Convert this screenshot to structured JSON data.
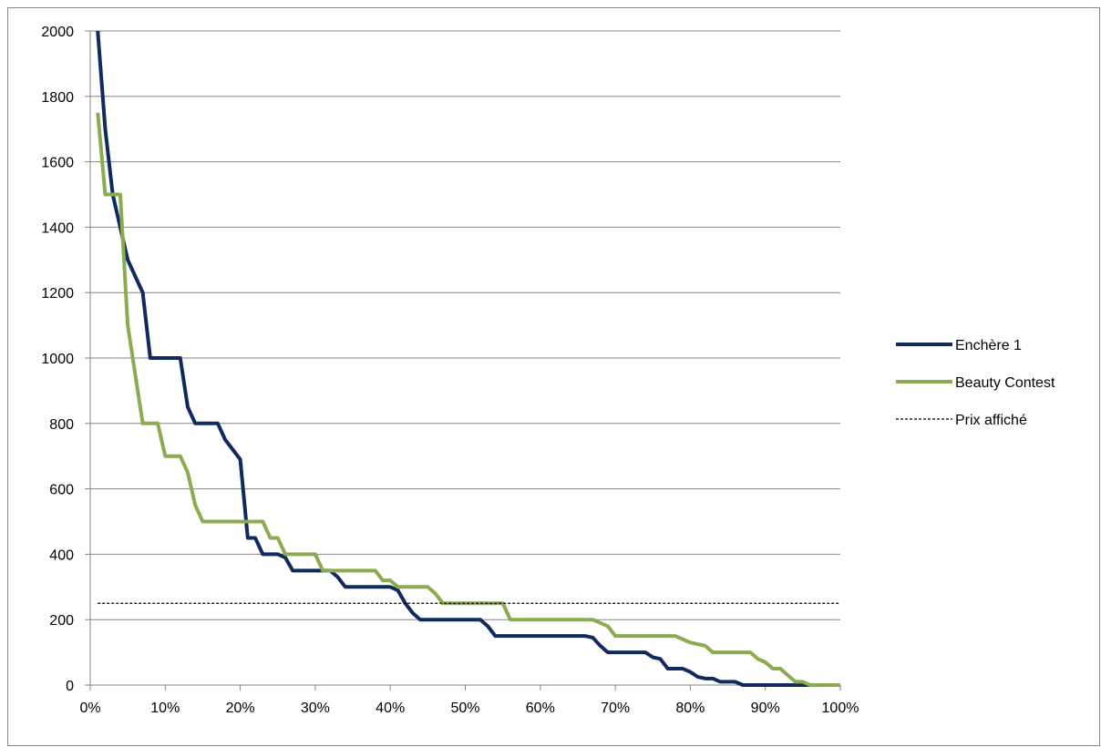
{
  "chart_data": {
    "type": "line",
    "title": "",
    "xlabel": "",
    "ylabel": "",
    "xlim": [
      0,
      100
    ],
    "ylim": [
      0,
      2000
    ],
    "x_ticks": [
      "0%",
      "10%",
      "20%",
      "30%",
      "40%",
      "50%",
      "60%",
      "70%",
      "80%",
      "90%",
      "100%"
    ],
    "y_ticks": [
      "0",
      "200",
      "400",
      "600",
      "800",
      "1000",
      "1200",
      "1400",
      "1600",
      "1800",
      "2000"
    ],
    "grid": "horizontal",
    "legend_position": "right",
    "series": [
      {
        "name": "Enchère 1",
        "color": "#0f2a5f",
        "style": "solid",
        "x": [
          1,
          2,
          3,
          4,
          5,
          6,
          7,
          8,
          9,
          10,
          11,
          12,
          13,
          14,
          15,
          16,
          17,
          18,
          19,
          20,
          21,
          22,
          23,
          24,
          25,
          26,
          27,
          28,
          29,
          30,
          31,
          32,
          33,
          34,
          35,
          36,
          37,
          38,
          39,
          40,
          41,
          42,
          43,
          44,
          45,
          46,
          47,
          48,
          49,
          50,
          51,
          52,
          53,
          54,
          55,
          56,
          57,
          58,
          59,
          60,
          61,
          62,
          63,
          64,
          65,
          66,
          67,
          68,
          69,
          70,
          71,
          72,
          73,
          74,
          75,
          76,
          77,
          78,
          79,
          80,
          81,
          82,
          83,
          84,
          85,
          86,
          87,
          88,
          89,
          90,
          91,
          92,
          93,
          94,
          95,
          96,
          97,
          98,
          99,
          100
        ],
        "values": [
          2000,
          1700,
          1500,
          1400,
          1300,
          1250,
          1200,
          1000,
          1000,
          1000,
          1000,
          1000,
          850,
          800,
          800,
          800,
          800,
          750,
          720,
          690,
          450,
          450,
          400,
          400,
          400,
          390,
          350,
          350,
          350,
          350,
          350,
          350,
          330,
          300,
          300,
          300,
          300,
          300,
          300,
          300,
          290,
          250,
          220,
          200,
          200,
          200,
          200,
          200,
          200,
          200,
          200,
          200,
          180,
          150,
          150,
          150,
          150,
          150,
          150,
          150,
          150,
          150,
          150,
          150,
          150,
          150,
          145,
          120,
          100,
          100,
          100,
          100,
          100,
          100,
          85,
          80,
          50,
          50,
          50,
          40,
          25,
          20,
          20,
          10,
          10,
          10,
          0,
          0,
          0,
          0,
          0,
          0,
          0,
          0,
          0,
          0,
          0,
          0,
          0,
          0
        ]
      },
      {
        "name": "Beauty Contest",
        "color": "#8aac4e",
        "style": "solid",
        "x": [
          1,
          2,
          3,
          4,
          5,
          6,
          7,
          8,
          9,
          10,
          11,
          12,
          13,
          14,
          15,
          16,
          17,
          18,
          19,
          20,
          21,
          22,
          23,
          24,
          25,
          26,
          27,
          28,
          29,
          30,
          31,
          32,
          33,
          34,
          35,
          36,
          37,
          38,
          39,
          40,
          41,
          42,
          43,
          44,
          45,
          46,
          47,
          48,
          49,
          50,
          51,
          52,
          53,
          54,
          55,
          56,
          57,
          58,
          59,
          60,
          61,
          62,
          63,
          64,
          65,
          66,
          67,
          68,
          69,
          70,
          71,
          72,
          73,
          74,
          75,
          76,
          77,
          78,
          79,
          80,
          81,
          82,
          83,
          84,
          85,
          86,
          87,
          88,
          89,
          90,
          91,
          92,
          93,
          94,
          95,
          96,
          97,
          98,
          99,
          100
        ],
        "values": [
          1750,
          1500,
          1500,
          1500,
          1100,
          950,
          800,
          800,
          800,
          700,
          700,
          700,
          650,
          550,
          500,
          500,
          500,
          500,
          500,
          500,
          500,
          500,
          500,
          450,
          450,
          400,
          400,
          400,
          400,
          400,
          350,
          350,
          350,
          350,
          350,
          350,
          350,
          350,
          320,
          320,
          300,
          300,
          300,
          300,
          300,
          280,
          250,
          250,
          250,
          250,
          250,
          250,
          250,
          250,
          250,
          200,
          200,
          200,
          200,
          200,
          200,
          200,
          200,
          200,
          200,
          200,
          200,
          190,
          180,
          150,
          150,
          150,
          150,
          150,
          150,
          150,
          150,
          150,
          140,
          130,
          125,
          120,
          100,
          100,
          100,
          100,
          100,
          100,
          80,
          70,
          50,
          50,
          30,
          10,
          10,
          0,
          0,
          0,
          0,
          0
        ]
      },
      {
        "name": "Prix affiché",
        "color": "#000000",
        "style": "dashed",
        "x": [
          1,
          100
        ],
        "values": [
          250,
          250
        ]
      }
    ]
  }
}
